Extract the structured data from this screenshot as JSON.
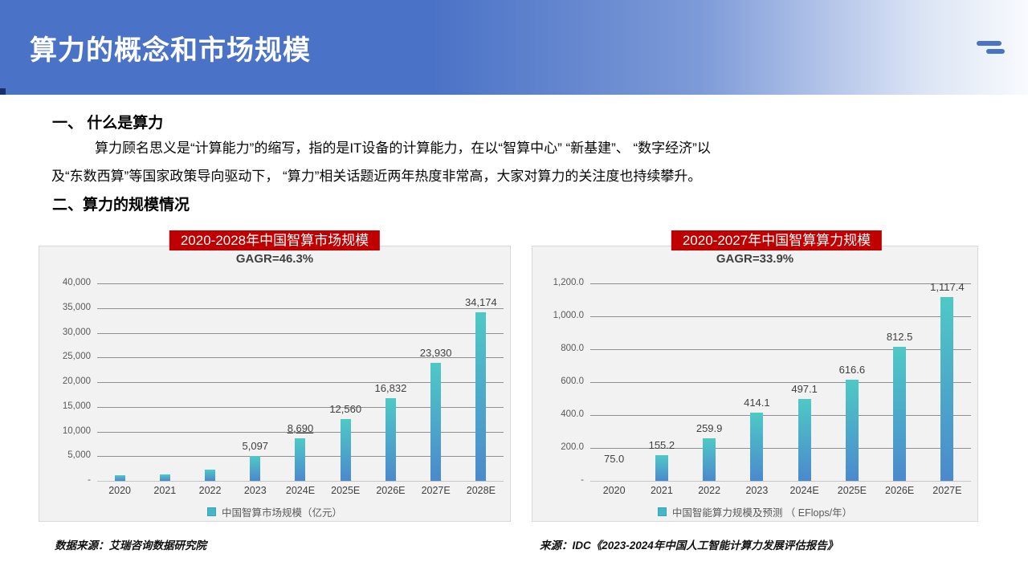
{
  "header": {
    "title": "算力的概念和市场规模",
    "menu_icon": "two-line-menu-icon"
  },
  "sections": {
    "s1_heading": "一、 什么是算力",
    "s1_line1": "算力顾名思义是“计算能力”的缩写，指的是IT设备的计算能力，在以“智算中心” “新基建”、 “数字经济”以",
    "s1_line2": "及“东数西算”等国家政策导向驱动下， “算力”相关话题近两年热度非常高，大家对算力的关注度也持续攀升。",
    "s2_heading": "二、算力的规模情况"
  },
  "sources": {
    "left": "数据来源：艾瑞咨询数据研究院",
    "right": "来源：IDC《2023-2024年中国人工智能计算力发展评估报告》"
  },
  "colors": {
    "header_blue": "#4a72c6",
    "banner_red": "#c00000",
    "bar_gradient_top": "#4ec9c6",
    "bar_gradient_bottom": "#4b89cd",
    "panel_bg": "#f2f2f2",
    "legend_swatch": "#43b7c9"
  },
  "chart_data": [
    {
      "type": "bar",
      "title": "2020-2028年中国智算市场规模",
      "subtitle": "GAGR=46.3%",
      "legend": "中国智算市场规模（亿元）",
      "legend_position": "bottom",
      "grid": true,
      "categories": [
        "2020",
        "2021",
        "2022",
        "2023",
        "2024E",
        "2025E",
        "2026E",
        "2027E",
        "2028E"
      ],
      "values": [
        1100,
        1300,
        2300,
        5097,
        8690,
        12560,
        16832,
        23930,
        34174
      ],
      "labels": [
        "",
        "",
        "",
        "5,097",
        "8,690",
        "12,560",
        "16,832",
        "23,930",
        "34,174"
      ],
      "ylim": [
        0,
        40000
      ],
      "ytick_step": 5000,
      "yticks": [
        "40,000",
        "35,000",
        "30,000",
        "25,000",
        "20,000",
        "15,000",
        "10,000",
        "5,000",
        "-"
      ],
      "underline_label_indexes": [
        4
      ],
      "hidden_bar_indexes": []
    },
    {
      "type": "bar",
      "title": "2020-2027年中国智算算力规模",
      "subtitle": "GAGR=33.9%",
      "legend": "中国智能算力规模及预测 （ EFlops/年）",
      "legend_position": "bottom",
      "grid": true,
      "categories": [
        "2020",
        "2021",
        "2022",
        "2023",
        "2024E",
        "2025E",
        "2026E",
        "2027E"
      ],
      "values": [
        75.0,
        155.2,
        259.9,
        414.1,
        497.1,
        616.6,
        812.5,
        1117.4
      ],
      "labels": [
        "75.0",
        "155.2",
        "259.9",
        "414.1",
        "497.1",
        "616.6",
        "812.5",
        "1,117.4"
      ],
      "ylim": [
        0,
        1200
      ],
      "ytick_step": 200,
      "yticks": [
        "1,200.0",
        "1,000.0",
        "800.0",
        "600.0",
        "400.0",
        "200.0",
        "-"
      ],
      "underline_label_indexes": [],
      "hidden_bar_indexes": [
        0
      ]
    }
  ]
}
